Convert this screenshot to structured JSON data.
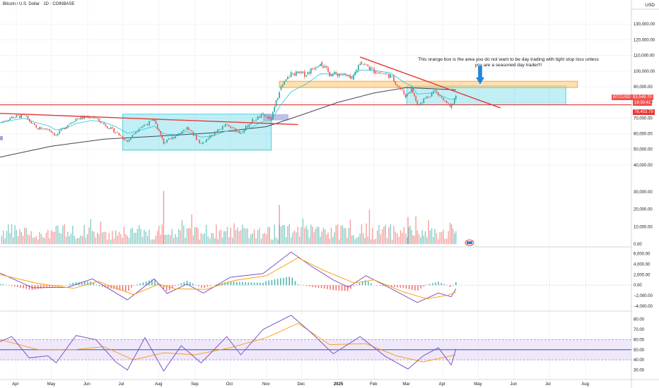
{
  "header": {
    "symbol_title": "Bitcoin / U.S. Dollar · 1D · COINBASE",
    "currency": "USD"
  },
  "annotation": {
    "text": "This orange box is the area you do not want to be day trading with tight stop loss unless you are a seasoned day trader!!!"
  },
  "price_labels": {
    "symbol": "BTCUSD",
    "last_price": "83,549.70",
    "countdown": "16:30:41",
    "support_price": "78,453.79"
  },
  "colors": {
    "up": "#26a69a",
    "down": "#ef5350",
    "trendline": "#e53935",
    "teal_box": "#4dd0e1",
    "orange_box": "#ffcc80",
    "sma200": "#434651",
    "ema": "#26c6da",
    "macd_line": "#7e57c2",
    "signal_line": "#ff9800",
    "rsi_line": "#7e57c2",
    "rsi_ma": "#ff9800",
    "rsi_band": "#e1d5f5",
    "rsi_mid": "#3f51b5"
  },
  "chart_data": [
    {
      "type": "line",
      "name": "price",
      "ylim": [
        35000,
        140000
      ],
      "y_ticks": [
        40000,
        50000,
        60000,
        70000,
        80000,
        90000,
        100000,
        110000,
        120000,
        130000
      ],
      "y_tick_labels": [
        "40,000.00",
        "50,000.00",
        "60,000.00",
        "70,000.00",
        "80,000.00",
        "90,000.00",
        "100,000.00",
        "110,000.00",
        "120,000.00",
        "130,000.00"
      ],
      "x_labels": [
        "Apr",
        "May",
        "Jun",
        "Jul",
        "Aug",
        "Sep",
        "Oct",
        "Nov",
        "Dec",
        "2025",
        "Feb",
        "Mar",
        "Apr",
        "May",
        "Jun",
        "Jul",
        "Aug"
      ],
      "x_label_dates": [
        "2024-04-01",
        "2024-05-01",
        "2024-06-01",
        "2024-07-01",
        "2024-08-01",
        "2024-09-01",
        "2024-10-01",
        "2024-11-01",
        "2024-12-01",
        "2025-01-01",
        "2025-02-01",
        "2025-03-01",
        "2025-04-01",
        "2025-05-01",
        "2025-06-01",
        "2025-07-01",
        "2025-08-01"
      ],
      "series_close": [
        {
          "x": "2024-03-18",
          "y": 67000
        },
        {
          "x": "2024-03-28",
          "y": 70500
        },
        {
          "x": "2024-04-08",
          "y": 71500
        },
        {
          "x": "2024-04-18",
          "y": 63500
        },
        {
          "x": "2024-04-28",
          "y": 63000
        },
        {
          "x": "2024-05-05",
          "y": 59000
        },
        {
          "x": "2024-05-15",
          "y": 66000
        },
        {
          "x": "2024-05-22",
          "y": 69500
        },
        {
          "x": "2024-06-05",
          "y": 71000
        },
        {
          "x": "2024-06-15",
          "y": 66000
        },
        {
          "x": "2024-06-25",
          "y": 61000
        },
        {
          "x": "2024-07-05",
          "y": 55000
        },
        {
          "x": "2024-07-15",
          "y": 64000
        },
        {
          "x": "2024-07-28",
          "y": 68500
        },
        {
          "x": "2024-08-05",
          "y": 54000
        },
        {
          "x": "2024-08-15",
          "y": 58500
        },
        {
          "x": "2024-08-25",
          "y": 64000
        },
        {
          "x": "2024-09-06",
          "y": 53500
        },
        {
          "x": "2024-09-15",
          "y": 59000
        },
        {
          "x": "2024-09-27",
          "y": 65500
        },
        {
          "x": "2024-10-10",
          "y": 60500
        },
        {
          "x": "2024-10-20",
          "y": 68500
        },
        {
          "x": "2024-10-29",
          "y": 72000
        },
        {
          "x": "2024-11-05",
          "y": 69000
        },
        {
          "x": "2024-11-12",
          "y": 88000
        },
        {
          "x": "2024-11-22",
          "y": 98500
        },
        {
          "x": "2024-12-05",
          "y": 98000
        },
        {
          "x": "2024-12-17",
          "y": 106000
        },
        {
          "x": "2024-12-25",
          "y": 98000
        },
        {
          "x": "2025-01-05",
          "y": 98000
        },
        {
          "x": "2025-01-13",
          "y": 94500
        },
        {
          "x": "2025-01-20",
          "y": 106000
        },
        {
          "x": "2025-02-01",
          "y": 100000
        },
        {
          "x": "2025-02-15",
          "y": 97000
        },
        {
          "x": "2025-02-28",
          "y": 84000
        },
        {
          "x": "2025-03-05",
          "y": 89000
        },
        {
          "x": "2025-03-10",
          "y": 78500
        },
        {
          "x": "2025-03-25",
          "y": 87500
        },
        {
          "x": "2025-04-07",
          "y": 76500
        },
        {
          "x": "2025-04-12",
          "y": 83500
        }
      ],
      "sma200": [
        {
          "x": "2024-03-18",
          "y": 45000
        },
        {
          "x": "2024-05-01",
          "y": 52000
        },
        {
          "x": "2024-06-15",
          "y": 56500
        },
        {
          "x": "2024-08-01",
          "y": 58500
        },
        {
          "x": "2024-09-15",
          "y": 60500
        },
        {
          "x": "2024-11-01",
          "y": 64500
        },
        {
          "x": "2024-12-01",
          "y": 72000
        },
        {
          "x": "2025-01-01",
          "y": 80000
        },
        {
          "x": "2025-02-01",
          "y": 86000
        },
        {
          "x": "2025-03-01",
          "y": 89500
        },
        {
          "x": "2025-04-12",
          "y": 88000
        }
      ],
      "trendline_descending_bottom": {
        "from": {
          "x": "2024-03-18",
          "y": 73000
        },
        "to": {
          "x": "2024-11-05",
          "y": 66500
        }
      },
      "trendline_descending_top": {
        "from": {
          "x": "2025-01-20",
          "y": 109000
        },
        "to": {
          "x": "2025-05-20",
          "y": 76500
        }
      },
      "horizontal_support": 78453.79,
      "teal_box_1": {
        "x0": "2024-07-01",
        "x1": "2024-11-05",
        "y0": 49500,
        "y1": 72500
      },
      "teal_box_2": {
        "x0": "2025-03-01",
        "x1": "2025-07-15",
        "y0": 78500,
        "y1": 90500
      },
      "orange_box": {
        "x0": "2024-11-12",
        "x1": "2025-07-25",
        "y0": 89500,
        "y1": 93500
      }
    },
    {
      "type": "bar",
      "name": "volume",
      "y_tick_labels": [
        "0.00",
        "10,000.00",
        "20,000.00",
        "30,000.00"
      ],
      "y_ticks": [
        0,
        10000,
        20000,
        30000
      ],
      "ylim": [
        0,
        34000
      ],
      "notable_values": [
        {
          "x": "2024-08-05",
          "y": 30500
        },
        {
          "x": "2024-11-12",
          "y": 22500
        },
        {
          "x": "2025-03-02",
          "y": 15500
        }
      ]
    },
    {
      "type": "line",
      "name": "macd",
      "y_ticks": [
        -4000,
        -2000,
        0,
        2000,
        4000,
        6000
      ],
      "y_tick_labels": [
        "−4,000.00",
        "−2,000.00",
        "0.00",
        "2,000.00",
        "4,000.00",
        "6,000.00"
      ],
      "ylim": [
        -4800,
        7000
      ],
      "macd": [
        {
          "x": "2024-03-18",
          "y": 2300
        },
        {
          "x": "2024-04-15",
          "y": -500
        },
        {
          "x": "2024-05-15",
          "y": -400
        },
        {
          "x": "2024-06-05",
          "y": 1200
        },
        {
          "x": "2024-07-05",
          "y": -2800
        },
        {
          "x": "2024-07-28",
          "y": 1200
        },
        {
          "x": "2024-08-08",
          "y": -1600
        },
        {
          "x": "2024-08-25",
          "y": 200
        },
        {
          "x": "2024-09-08",
          "y": -1500
        },
        {
          "x": "2024-10-01",
          "y": 1500
        },
        {
          "x": "2024-10-29",
          "y": 2200
        },
        {
          "x": "2024-11-22",
          "y": 6300
        },
        {
          "x": "2024-12-10",
          "y": 3500
        },
        {
          "x": "2024-12-28",
          "y": 1000
        },
        {
          "x": "2025-01-10",
          "y": -400
        },
        {
          "x": "2025-01-25",
          "y": 1800
        },
        {
          "x": "2025-02-15",
          "y": -600
        },
        {
          "x": "2025-03-10",
          "y": -3300
        },
        {
          "x": "2025-03-28",
          "y": -1500
        },
        {
          "x": "2025-04-08",
          "y": -2200
        },
        {
          "x": "2025-04-12",
          "y": -700
        }
      ],
      "signal": [
        {
          "x": "2024-03-18",
          "y": 2000
        },
        {
          "x": "2024-04-20",
          "y": 300
        },
        {
          "x": "2024-05-20",
          "y": -600
        },
        {
          "x": "2024-06-10",
          "y": 700
        },
        {
          "x": "2024-07-10",
          "y": -1800
        },
        {
          "x": "2024-08-01",
          "y": 200
        },
        {
          "x": "2024-08-15",
          "y": -700
        },
        {
          "x": "2024-09-10",
          "y": -800
        },
        {
          "x": "2024-10-05",
          "y": 900
        },
        {
          "x": "2024-11-01",
          "y": 1800
        },
        {
          "x": "2024-11-28",
          "y": 5200
        },
        {
          "x": "2024-12-20",
          "y": 2800
        },
        {
          "x": "2025-01-15",
          "y": 400
        },
        {
          "x": "2025-02-01",
          "y": 1000
        },
        {
          "x": "2025-02-25",
          "y": -1200
        },
        {
          "x": "2025-03-18",
          "y": -2600
        },
        {
          "x": "2025-04-05",
          "y": -1900
        },
        {
          "x": "2025-04-12",
          "y": -1300
        }
      ]
    },
    {
      "type": "line",
      "name": "rsi",
      "y_ticks": [
        30,
        40,
        50,
        60,
        70,
        80
      ],
      "y_tick_labels": [
        "30.00",
        "40.00",
        "50.00",
        "60.00",
        "70.00",
        "80.00"
      ],
      "ylim": [
        22,
        86
      ],
      "band": [
        40,
        60
      ],
      "mid": 50,
      "rsi": [
        {
          "x": "2024-03-18",
          "y": 58
        },
        {
          "x": "2024-03-28",
          "y": 63
        },
        {
          "x": "2024-04-12",
          "y": 42
        },
        {
          "x": "2024-04-28",
          "y": 44
        },
        {
          "x": "2024-05-05",
          "y": 37
        },
        {
          "x": "2024-05-22",
          "y": 64
        },
        {
          "x": "2024-06-08",
          "y": 60
        },
        {
          "x": "2024-06-25",
          "y": 38
        },
        {
          "x": "2024-07-05",
          "y": 30
        },
        {
          "x": "2024-07-20",
          "y": 62
        },
        {
          "x": "2024-08-05",
          "y": 29
        },
        {
          "x": "2024-08-20",
          "y": 54
        },
        {
          "x": "2024-09-06",
          "y": 37
        },
        {
          "x": "2024-09-28",
          "y": 63
        },
        {
          "x": "2024-10-10",
          "y": 45
        },
        {
          "x": "2024-10-29",
          "y": 70
        },
        {
          "x": "2024-11-22",
          "y": 84
        },
        {
          "x": "2024-12-10",
          "y": 66
        },
        {
          "x": "2024-12-28",
          "y": 46
        },
        {
          "x": "2025-01-20",
          "y": 63
        },
        {
          "x": "2025-02-10",
          "y": 44
        },
        {
          "x": "2025-03-02",
          "y": 31
        },
        {
          "x": "2025-03-15",
          "y": 44
        },
        {
          "x": "2025-03-28",
          "y": 52
        },
        {
          "x": "2025-04-08",
          "y": 35
        },
        {
          "x": "2025-04-12",
          "y": 51
        }
      ],
      "rsi_ma": [
        {
          "x": "2024-03-18",
          "y": 60
        },
        {
          "x": "2024-04-20",
          "y": 50
        },
        {
          "x": "2024-05-20",
          "y": 50
        },
        {
          "x": "2024-06-15",
          "y": 53
        },
        {
          "x": "2024-07-10",
          "y": 40
        },
        {
          "x": "2024-08-05",
          "y": 47
        },
        {
          "x": "2024-09-01",
          "y": 45
        },
        {
          "x": "2024-10-01",
          "y": 52
        },
        {
          "x": "2024-11-01",
          "y": 62
        },
        {
          "x": "2024-11-28",
          "y": 76
        },
        {
          "x": "2024-12-25",
          "y": 55
        },
        {
          "x": "2025-01-25",
          "y": 56
        },
        {
          "x": "2025-02-20",
          "y": 44
        },
        {
          "x": "2025-03-15",
          "y": 38
        },
        {
          "x": "2025-04-12",
          "y": 45
        }
      ]
    }
  ]
}
